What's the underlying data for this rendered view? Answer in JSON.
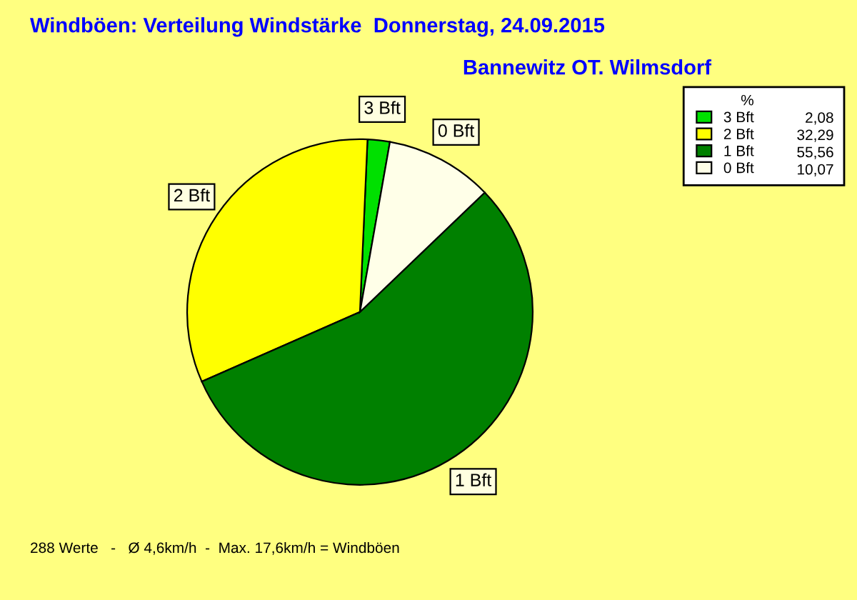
{
  "chart_data": {
    "type": "pie",
    "title": "Windböen: Verteilung Windstärke  Donnerstag, 24.09.2015",
    "subtitle": "Bannewitz OT. Wilmsdorf",
    "categories": [
      "3 Bft",
      "2 Bft",
      "1 Bft",
      "0 Bft"
    ],
    "values": [
      2.08,
      32.29,
      55.56,
      10.07
    ],
    "value_labels": [
      "2,08",
      "32,29",
      "55,56",
      "10,07"
    ],
    "colors": [
      "#00e000",
      "#ffff00",
      "#008000",
      "#ffffe8"
    ],
    "legend_title": "%",
    "legend": "top right",
    "annotations": [
      "288 Werte   -   Ø 4,6km/h  -  Max. 17,6km/h = Windböen"
    ]
  }
}
